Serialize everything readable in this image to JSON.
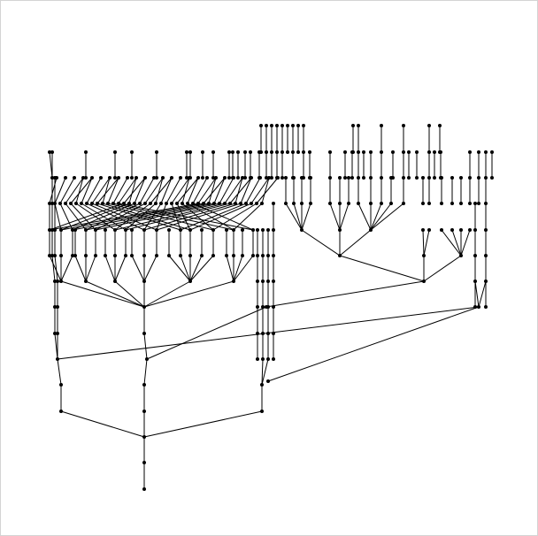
{
  "diagram": {
    "type": "hierarchical-graph",
    "labels": "none",
    "background_color": "#ffffff",
    "border_color": "#d4d4d4",
    "node_color": "#000000",
    "edge_color": "#000000"
  }
}
